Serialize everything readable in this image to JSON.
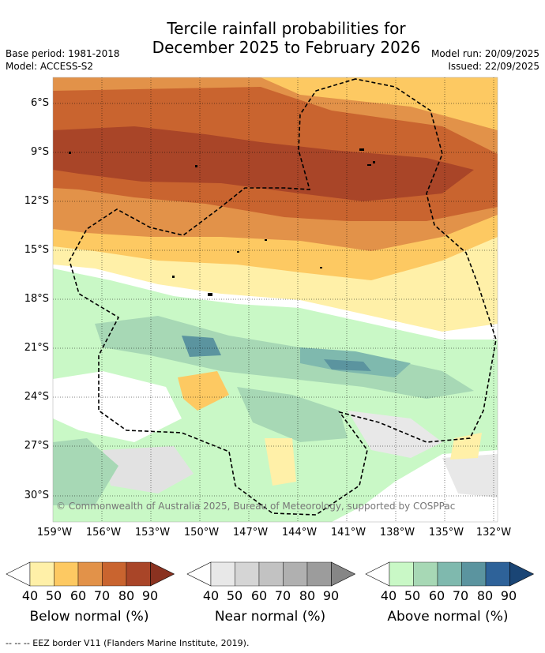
{
  "title": {
    "line1": "Tercile rainfall probabilities for",
    "line2": "December 2025 to February 2026"
  },
  "meta_left": {
    "base_period": "Base period: 1981-2018",
    "model": "Model: ACCESS-S2"
  },
  "meta_right": {
    "model_run": "Model run: 20/09/2025",
    "issued": "Issued: 22/09/2025"
  },
  "y_ticks": [
    "6°S",
    "9°S",
    "12°S",
    "15°S",
    "18°S",
    "21°S",
    "24°S",
    "27°S",
    "30°S"
  ],
  "x_ticks": [
    "159°W",
    "156°W",
    "153°W",
    "150°W",
    "147°W",
    "144°W",
    "141°W",
    "138°W",
    "135°W",
    "132°W"
  ],
  "copyright": "© Commonwealth of Australia 2025, Bureau of Meteorology, supported by COSPPac",
  "colorbars": [
    {
      "label": "Below normal (%)",
      "values": [
        "40",
        "50",
        "60",
        "70",
        "80",
        "90"
      ],
      "colors": [
        "#fff0a8",
        "#fdc962",
        "#e29249",
        "#c9642f",
        "#a94528",
        "#8a3220"
      ]
    },
    {
      "label": "Near normal (%)",
      "values": [
        "40",
        "50",
        "60",
        "70",
        "80",
        "90"
      ],
      "colors": [
        "#e8e8e8",
        "#d5d5d5",
        "#c2c2c2",
        "#b0b0b0",
        "#9c9c9c",
        "#868686"
      ]
    },
    {
      "label": "Above normal (%)",
      "values": [
        "40",
        "50",
        "60",
        "70",
        "80",
        "90"
      ],
      "colors": [
        "#c9f8c6",
        "#a7d8b5",
        "#7fb9ae",
        "#5b949f",
        "#2e6299",
        "#1a4575"
      ]
    }
  ],
  "footer": "--  --  -- EEZ border V11 (Flanders Marine Institute, 2019)."
}
